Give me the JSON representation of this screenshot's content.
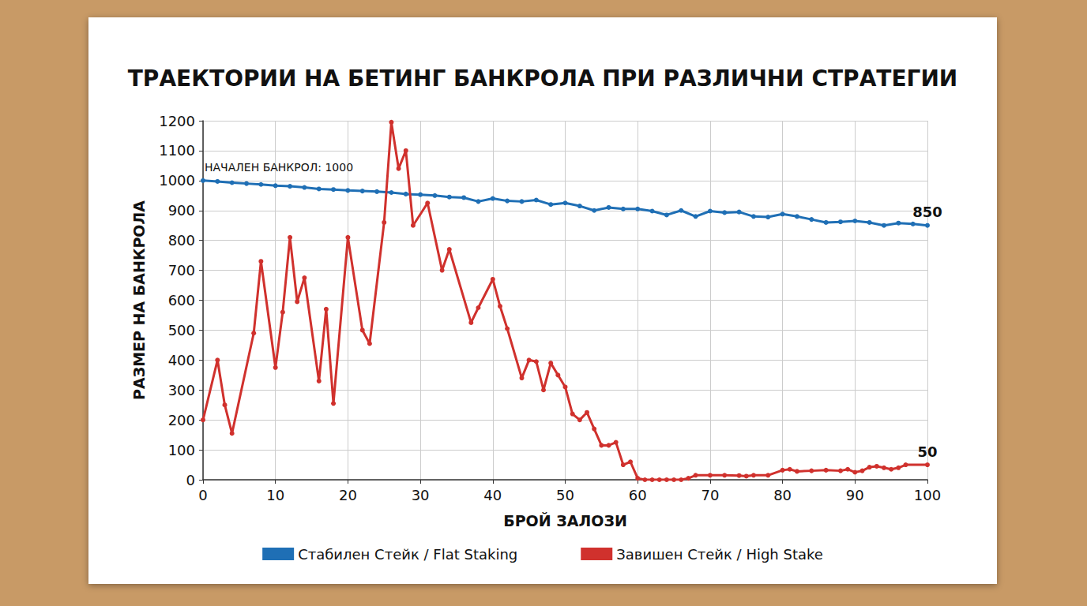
{
  "chart_data": {
    "type": "line",
    "title": "ТРАЕКТОРИИ НА БЕТИНГ БАНКРОЛА ПРИ РАЗЛИЧНИ СТРАТЕГИИ",
    "x_label": "БРОЙ ЗАЛОЗИ",
    "y_label": "РАЗМЕР НА БАНКРОЛА",
    "xlim": [
      0,
      100
    ],
    "xticks": [
      0,
      10,
      20,
      30,
      40,
      50,
      60,
      70,
      80,
      90,
      100
    ],
    "ylim": [
      0,
      1200
    ],
    "yticks": [
      0,
      100,
      200,
      300,
      400,
      500,
      600,
      700,
      800,
      900,
      1000,
      1100,
      1200
    ],
    "grid": true,
    "legend": "bottom",
    "marker": "circle",
    "annotations": [
      {
        "text": "НАЧАЛЕН БАНКРОЛ: 1000",
        "x": 0,
        "y": 1000
      },
      {
        "text": "850",
        "x": 100,
        "y": 850
      },
      {
        "text": "50",
        "x": 100,
        "y": 50
      }
    ],
    "series": [
      {
        "name": "Стабилен Стейк / Flat Staking",
        "color": "#1f6fb5",
        "x": [
          0,
          2,
          4,
          6,
          8,
          10,
          12,
          14,
          16,
          18,
          20,
          22,
          24,
          26,
          28,
          30,
          32,
          34,
          36,
          38,
          40,
          42,
          44,
          46,
          48,
          50,
          52,
          54,
          56,
          58,
          60,
          62,
          64,
          66,
          68,
          70,
          72,
          74,
          76,
          78,
          80,
          82,
          84,
          86,
          88,
          90,
          92,
          94,
          96,
          98,
          100
        ],
        "values": [
          1000,
          997,
          993,
          990,
          987,
          983,
          981,
          977,
          972,
          970,
          967,
          965,
          963,
          960,
          955,
          953,
          950,
          945,
          943,
          930,
          940,
          932,
          930,
          935,
          920,
          925,
          915,
          900,
          910,
          905,
          905,
          898,
          885,
          900,
          880,
          898,
          893,
          895,
          880,
          878,
          888,
          880,
          870,
          860,
          862,
          865,
          860,
          850,
          858,
          855,
          850
        ]
      },
      {
        "name": "Завишен Стейк / High Stake",
        "color": "#d0312d",
        "x": [
          0,
          2,
          3,
          4,
          7,
          8,
          10,
          11,
          12,
          13,
          14,
          16,
          17,
          18,
          20,
          22,
          23,
          25,
          26,
          27,
          28,
          29,
          31,
          33,
          34,
          37,
          38,
          40,
          41,
          42,
          44,
          45,
          46,
          47,
          48,
          49,
          50,
          51,
          52,
          53,
          54,
          55,
          56,
          57,
          58,
          59,
          60,
          61,
          62,
          63,
          64,
          65,
          66,
          67,
          68,
          70,
          72,
          74,
          75,
          76,
          78,
          80,
          81,
          82,
          84,
          86,
          88,
          89,
          90,
          91,
          92,
          93,
          94,
          95,
          96,
          97,
          100
        ],
        "values": [
          200,
          400,
          250,
          155,
          490,
          730,
          375,
          560,
          810,
          595,
          675,
          330,
          570,
          255,
          810,
          500,
          455,
          860,
          1195,
          1040,
          1100,
          850,
          925,
          700,
          770,
          525,
          575,
          670,
          580,
          505,
          340,
          400,
          395,
          300,
          390,
          350,
          310,
          220,
          200,
          225,
          170,
          115,
          115,
          125,
          50,
          60,
          5,
          0,
          0,
          0,
          0,
          0,
          0,
          5,
          15,
          15,
          15,
          14,
          12,
          15,
          15,
          32,
          35,
          28,
          30,
          32,
          30,
          35,
          25,
          30,
          42,
          45,
          40,
          35,
          40,
          50,
          50
        ]
      }
    ]
  }
}
